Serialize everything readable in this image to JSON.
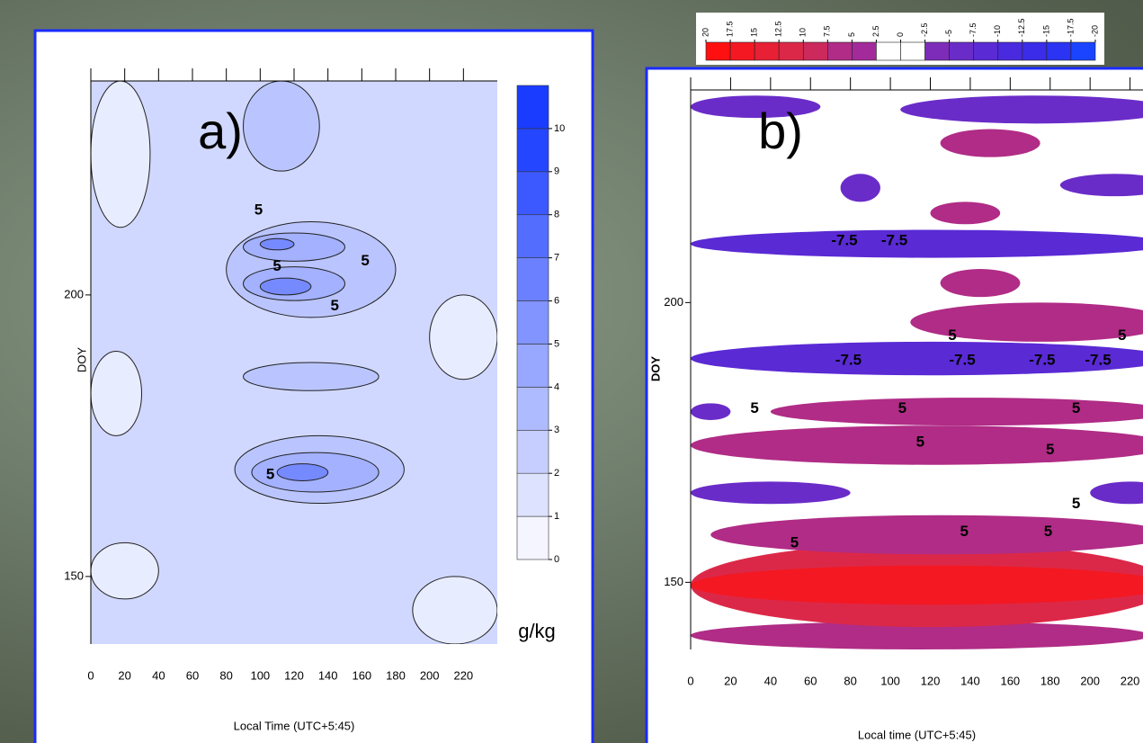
{
  "chart_data": [
    {
      "type": "contour",
      "title": "a)",
      "xlabel": "Local Time (UTC+5:45)",
      "ylabel": "DOY",
      "xlim": [
        0,
        240
      ],
      "ylim": [
        138,
        238
      ],
      "xticks": [
        0,
        20,
        40,
        60,
        80,
        100,
        120,
        140,
        160,
        180,
        200,
        220
      ],
      "yticks": [
        150,
        200
      ],
      "colorbar": {
        "label": "g/kg",
        "range": [
          0,
          11
        ],
        "ticks": [
          0,
          1,
          2,
          3,
          4,
          5,
          6,
          7,
          8,
          9,
          10
        ],
        "colors": [
          "#ffffff",
          "#1a3cff"
        ]
      },
      "regions": [
        {
          "x": [
            0,
            240
          ],
          "y": [
            138,
            238
          ],
          "value": 2
        },
        {
          "x": [
            0,
            40
          ],
          "y": [
            146,
            156
          ],
          "value": 1
        },
        {
          "x": [
            190,
            240
          ],
          "y": [
            138,
            150
          ],
          "value": 1
        },
        {
          "x": [
            0,
            35
          ],
          "y": [
            212,
            238
          ],
          "value": 1
        },
        {
          "x": [
            200,
            240
          ],
          "y": [
            185,
            200
          ],
          "value": 1
        },
        {
          "x": [
            0,
            30
          ],
          "y": [
            175,
            190
          ],
          "value": 1
        },
        {
          "x": [
            85,
            185
          ],
          "y": [
            163,
            175
          ],
          "value": 3
        },
        {
          "x": [
            80,
            180
          ],
          "y": [
            196,
            213
          ],
          "value": 3
        },
        {
          "x": [
            90,
            135
          ],
          "y": [
            222,
            238
          ],
          "value": 3
        },
        {
          "x": [
            90,
            170
          ],
          "y": [
            183,
            188
          ],
          "value": 3
        },
        {
          "x": [
            95,
            170
          ],
          "y": [
            165,
            172
          ],
          "value": 4
        },
        {
          "x": [
            90,
            150
          ],
          "y": [
            199,
            205
          ],
          "value": 4
        },
        {
          "x": [
            90,
            150
          ],
          "y": [
            206,
            211
          ],
          "value": 4
        },
        {
          "x": [
            100,
            130
          ],
          "y": [
            200,
            203
          ],
          "value": 6
        },
        {
          "x": [
            100,
            120
          ],
          "y": [
            208,
            210
          ],
          "value": 6
        },
        {
          "x": [
            110,
            140
          ],
          "y": [
            167,
            170
          ],
          "value": 6
        }
      ],
      "contour_labels": [
        {
          "text": "5",
          "x": 99,
          "y": 215
        },
        {
          "text": "5",
          "x": 162,
          "y": 206
        },
        {
          "text": "5",
          "x": 110,
          "y": 205
        },
        {
          "text": "5",
          "x": 144,
          "y": 198
        },
        {
          "text": "5",
          "x": 106,
          "y": 168
        }
      ]
    },
    {
      "type": "contour",
      "title": "b)",
      "xlabel": "Local time (UTC+5:45)",
      "ylabel": "DOY",
      "xlim": [
        0,
        240
      ],
      "ylim": [
        138,
        238
      ],
      "xticks": [
        0,
        20,
        40,
        60,
        80,
        100,
        120,
        140,
        160,
        180,
        200,
        220
      ],
      "yticks": [
        150,
        200
      ],
      "colorbar": {
        "range": [
          20,
          -20
        ],
        "ticks": [
          20,
          {
            "value": 17.5,
            "label": "17.5"
          },
          15,
          {
            "value": 12.5,
            "label": "12.5"
          },
          10,
          {
            "value": 7.5,
            "label": "7.5"
          },
          5,
          {
            "value": 2.5,
            "label": "2.5"
          },
          0,
          {
            "value": -2.5,
            "label": "-2.5"
          },
          -5,
          {
            "value": -7.5,
            "label": "-7.5"
          },
          -10,
          {
            "value": -12.5,
            "label": "-12.5"
          },
          -15,
          {
            "value": -17.5,
            "label": "-17.5"
          },
          -20
        ],
        "colors": [
          "#ff1010",
          "#f41822",
          "#e82035",
          "#dc2848",
          "#cc2a5c",
          "#b02c86",
          "#a32a9a",
          "#ffffff",
          "#ffffff",
          "#7d2cba",
          "#6a2cc8",
          "#5a2ad4",
          "#4a2ade",
          "#3a2ce8",
          "#2a34f2",
          "#1a44ff"
        ]
      },
      "regions": [
        {
          "x": [
            0,
            230
          ],
          "y": [
            138,
            143
          ],
          "value": 6
        },
        {
          "x": [
            0,
            240
          ],
          "y": [
            142,
            157
          ],
          "value": 11
        },
        {
          "x": [
            0,
            240
          ],
          "y": [
            146,
            153
          ],
          "value": 16
        },
        {
          "x": [
            10,
            240
          ],
          "y": [
            155,
            162
          ],
          "value": 6
        },
        {
          "x": [
            0,
            80
          ],
          "y": [
            164,
            168
          ],
          "value": -6
        },
        {
          "x": [
            200,
            240
          ],
          "y": [
            164,
            168
          ],
          "value": -6
        },
        {
          "x": [
            0,
            240
          ],
          "y": [
            171,
            178
          ],
          "value": 6
        },
        {
          "x": [
            0,
            20
          ],
          "y": [
            179,
            182
          ],
          "value": -6
        },
        {
          "x": [
            40,
            240
          ],
          "y": [
            178,
            183
          ],
          "value": 6
        },
        {
          "x": [
            0,
            240
          ],
          "y": [
            187,
            193
          ],
          "value": -8.5
        },
        {
          "x": [
            110,
            240
          ],
          "y": [
            193,
            200
          ],
          "value": 6
        },
        {
          "x": [
            125,
            165
          ],
          "y": [
            201,
            206
          ],
          "value": 6
        },
        {
          "x": [
            0,
            240
          ],
          "y": [
            208,
            213
          ],
          "value": -8.5
        },
        {
          "x": [
            120,
            155
          ],
          "y": [
            214,
            218
          ],
          "value": 6
        },
        {
          "x": [
            75,
            95
          ],
          "y": [
            218,
            223
          ],
          "value": -6
        },
        {
          "x": [
            185,
            240
          ],
          "y": [
            219,
            223
          ],
          "value": -6
        },
        {
          "x": [
            125,
            175
          ],
          "y": [
            226,
            231
          ],
          "value": 6
        },
        {
          "x": [
            0,
            65
          ],
          "y": [
            233,
            237
          ],
          "value": -6
        },
        {
          "x": [
            105,
            240
          ],
          "y": [
            232,
            237
          ],
          "value": -6
        }
      ],
      "contour_labels": [
        {
          "text": "-7.5",
          "x": 77,
          "y": 211
        },
        {
          "text": "-7.5",
          "x": 102,
          "y": 211
        },
        {
          "text": "5",
          "x": 131,
          "y": 194
        },
        {
          "text": "5",
          "x": 216,
          "y": 194
        },
        {
          "text": "-7.5",
          "x": 79,
          "y": 189.6
        },
        {
          "text": "-7.5",
          "x": 136,
          "y": 189.6
        },
        {
          "text": "-7.5",
          "x": 176,
          "y": 189.6
        },
        {
          "text": "-7.5",
          "x": 204,
          "y": 189.6
        },
        {
          "text": "5",
          "x": 32,
          "y": 181
        },
        {
          "text": "5",
          "x": 106,
          "y": 181
        },
        {
          "text": "5",
          "x": 193,
          "y": 181
        },
        {
          "text": "5",
          "x": 115,
          "y": 175
        },
        {
          "text": "5",
          "x": 180,
          "y": 173.6
        },
        {
          "text": "5",
          "x": 193,
          "y": 164
        },
        {
          "text": "5",
          "x": 52,
          "y": 157
        },
        {
          "text": "5",
          "x": 137,
          "y": 159
        },
        {
          "text": "5",
          "x": 179,
          "y": 159
        }
      ]
    }
  ]
}
